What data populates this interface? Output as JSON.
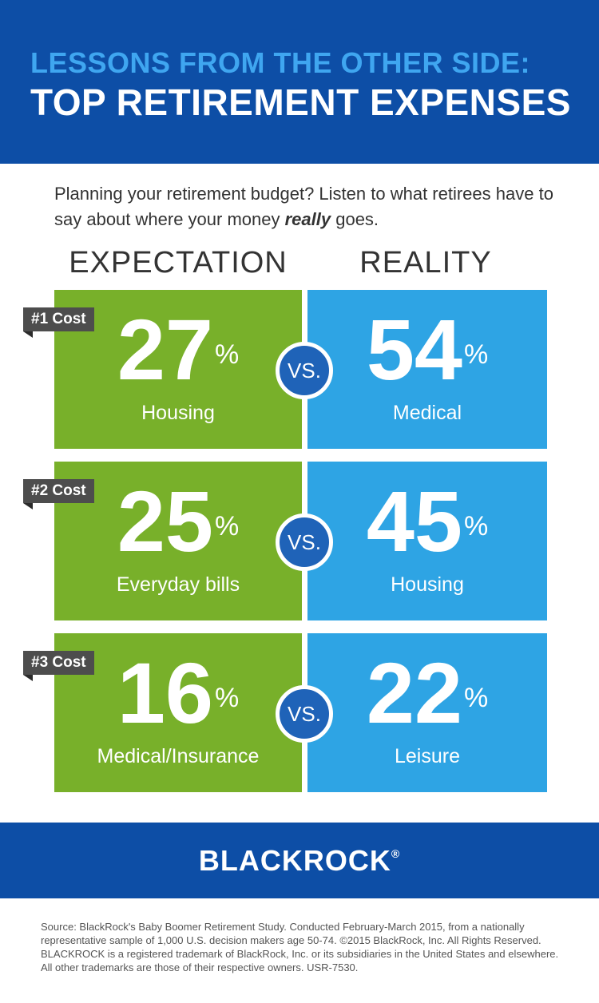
{
  "header": {
    "line1": "LESSONS FROM THE OTHER SIDE:",
    "line2": "TOP RETIREMENT EXPENSES"
  },
  "intro": {
    "part1": "Planning your retirement budget? Listen to what retirees have to say about where your money ",
    "emphasis": "really",
    "part2": " goes."
  },
  "columns": {
    "expectation": "EXPECTATION",
    "reality": "REALITY"
  },
  "vs_label": "VS.",
  "percent_sign": "%",
  "colors": {
    "header": "#0d4ea6",
    "accent_light_blue": "#3fa6f0",
    "expectation": "#78b02a",
    "reality": "#2ea4e4",
    "vs_circle": "#1f63b8",
    "rank_tag": "#4d4d4d"
  },
  "chart_data": {
    "type": "table",
    "categories": [
      "#1 Cost",
      "#2 Cost",
      "#3 Cost"
    ],
    "series": [
      {
        "name": "EXPECTATION",
        "values": [
          27,
          25,
          16
        ],
        "labels": [
          "Housing",
          "Everyday bills",
          "Medical/Insurance"
        ]
      },
      {
        "name": "REALITY",
        "values": [
          54,
          45,
          22
        ],
        "labels": [
          "Medical",
          "Housing",
          "Leisure"
        ]
      }
    ],
    "unit": "%"
  },
  "rows": [
    {
      "rank": "#1 Cost",
      "exp_value": "27",
      "exp_label": "Housing",
      "real_value": "54",
      "real_label": "Medical"
    },
    {
      "rank": "#2 Cost",
      "exp_value": "25",
      "exp_label": "Everyday bills",
      "real_value": "45",
      "real_label": "Housing"
    },
    {
      "rank": "#3 Cost",
      "exp_value": "16",
      "exp_label": "Medical/Insurance",
      "real_value": "22",
      "real_label": "Leisure"
    }
  ],
  "brand": {
    "name": "BLACKROCK",
    "mark": "®"
  },
  "source": "Source: BlackRock's Baby Boomer Retirement Study. Conducted February-March 2015, from a nationally representative sample of 1,000 U.S. decision makers age 50-74. ©2015 BlackRock, Inc. All Rights Reserved. BLACKROCK is a registered trademark of BlackRock, Inc. or its subsidiaries in the United States and elsewhere. All other trademarks are those of their respective owners. USR-7530."
}
